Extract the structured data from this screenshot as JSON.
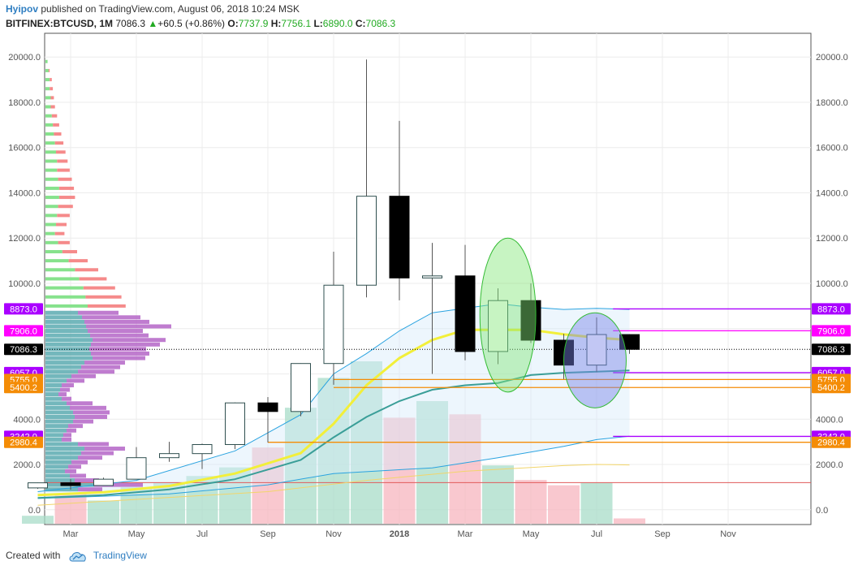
{
  "header": {
    "author": "Hyipov",
    "published_text": "published on TradingView.com, August 06, 2018 10:24 MSK",
    "symbol": "BITFINEX:BTCUSD, 1M",
    "last": "7086.3",
    "change_arrow": "▲",
    "change": "+60.5 (+0.86%)",
    "o_label": "O:",
    "o": "7737.9",
    "h_label": "H:",
    "h": "7756.1",
    "l_label": "L:",
    "l": "6890.0",
    "c_label": "C:",
    "c": "7086.3"
  },
  "footer": {
    "created_with": "Created with",
    "brand": "TradingView",
    "logo_icon": "tradingview-cloud-icon"
  },
  "colors": {
    "up_fill": "#ffffff",
    "down_fill": "#000000",
    "wick": "#555555",
    "vol_up": "#a8dcc8",
    "vol_down": "#f7b6bf",
    "ma_yellow": "#f2ef3a",
    "ma_teal": "#3a9e98",
    "band": "#2aa3e0",
    "profile_green": "#86e28c",
    "profile_red": "#f58a8a",
    "profile_teal": "#5aaab0",
    "profile_purple": "#b465c7",
    "green_ellipse": "#7ae37a",
    "blue_ellipse": "#8c96e8"
  },
  "chart_data": {
    "type": "candlestick",
    "x_labels": [
      "Mar",
      "May",
      "Jul",
      "Sep",
      "Nov",
      "2018",
      "Mar",
      "May",
      "Jul",
      "Sep",
      "Nov"
    ],
    "y_ticks": [
      "20000.0",
      "18000.0",
      "16000.0",
      "14000.0",
      "12000.0",
      "10000.0",
      "8000.0",
      "6000.0",
      "4000.0",
      "2000.0",
      "0.0"
    ],
    "candles": [
      {
        "m": "2017-02",
        "o": 965,
        "h": 1200,
        "l": 920,
        "c": 1190
      },
      {
        "m": "2017-03",
        "o": 1190,
        "h": 1350,
        "l": 890,
        "c": 1070
      },
      {
        "m": "2017-04",
        "o": 1070,
        "h": 1420,
        "l": 1060,
        "c": 1350
      },
      {
        "m": "2017-05",
        "o": 1350,
        "h": 2770,
        "l": 1350,
        "c": 2300
      },
      {
        "m": "2017-06",
        "o": 2300,
        "h": 3000,
        "l": 2120,
        "c": 2480
      },
      {
        "m": "2017-07",
        "o": 2480,
        "h": 2920,
        "l": 1800,
        "c": 2880
      },
      {
        "m": "2017-08",
        "o": 2880,
        "h": 4740,
        "l": 2680,
        "c": 4720
      },
      {
        "m": "2017-09",
        "o": 4720,
        "h": 4980,
        "l": 2970,
        "c": 4340
      },
      {
        "m": "2017-10",
        "o": 4340,
        "h": 6470,
        "l": 4130,
        "c": 6460
      },
      {
        "m": "2017-11",
        "o": 6460,
        "h": 11400,
        "l": 5520,
        "c": 9920
      },
      {
        "m": "2017-12",
        "o": 9920,
        "h": 19890,
        "l": 9380,
        "c": 13850
      },
      {
        "m": "2018-01",
        "o": 13850,
        "h": 17180,
        "l": 9250,
        "c": 10240
      },
      {
        "m": "2018-02",
        "o": 10240,
        "h": 11790,
        "l": 6000,
        "c": 10330
      },
      {
        "m": "2018-03",
        "o": 10330,
        "h": 11700,
        "l": 6600,
        "c": 6990
      },
      {
        "m": "2018-04",
        "o": 6990,
        "h": 9780,
        "l": 6430,
        "c": 9240
      },
      {
        "m": "2018-05",
        "o": 9240,
        "h": 10000,
        "l": 7370,
        "c": 7490
      },
      {
        "m": "2018-06",
        "o": 7490,
        "h": 7770,
        "l": 5770,
        "c": 6390
      },
      {
        "m": "2018-07",
        "o": 6390,
        "h": 8500,
        "l": 6080,
        "c": 7740
      },
      {
        "m": "2018-08",
        "o": 7737.9,
        "h": 7756.1,
        "l": 6890.0,
        "c": 7086.3
      }
    ],
    "volume_relative": [
      0.12,
      0.45,
      0.35,
      0.55,
      0.62,
      0.72,
      0.85,
      1.15,
      1.75,
      2.2,
      2.45,
      1.6,
      1.85,
      1.65,
      0.88,
      0.66,
      0.58,
      0.62,
      0.08
    ],
    "volume_bull": [
      true,
      false,
      true,
      true,
      true,
      true,
      true,
      false,
      true,
      true,
      true,
      false,
      true,
      false,
      true,
      false,
      false,
      true,
      false
    ],
    "ma_yellow": [
      {
        "i": 0,
        "v": 650
      },
      {
        "i": 2,
        "v": 770
      },
      {
        "i": 4,
        "v": 1050
      },
      {
        "i": 6,
        "v": 1600
      },
      {
        "i": 8,
        "v": 2500
      },
      {
        "i": 9,
        "v": 3800
      },
      {
        "i": 10,
        "v": 5500
      },
      {
        "i": 11,
        "v": 6700
      },
      {
        "i": 12,
        "v": 7500
      },
      {
        "i": 13,
        "v": 7950
      },
      {
        "i": 14,
        "v": 7950
      },
      {
        "i": 15,
        "v": 7950
      },
      {
        "i": 16,
        "v": 7750
      },
      {
        "i": 17,
        "v": 7600
      },
      {
        "i": 18,
        "v": 7500
      }
    ],
    "ma_teal": [
      {
        "i": 0,
        "v": 520
      },
      {
        "i": 2,
        "v": 650
      },
      {
        "i": 4,
        "v": 900
      },
      {
        "i": 6,
        "v": 1350
      },
      {
        "i": 8,
        "v": 2200
      },
      {
        "i": 9,
        "v": 3200
      },
      {
        "i": 10,
        "v": 4100
      },
      {
        "i": 11,
        "v": 4800
      },
      {
        "i": 12,
        "v": 5300
      },
      {
        "i": 13,
        "v": 5500
      },
      {
        "i": 14,
        "v": 5600
      },
      {
        "i": 15,
        "v": 5950
      },
      {
        "i": 16,
        "v": 6050
      },
      {
        "i": 17,
        "v": 6100
      },
      {
        "i": 18,
        "v": 6150
      }
    ],
    "band_upper": [
      {
        "i": 0,
        "v": 800
      },
      {
        "i": 3,
        "v": 1300
      },
      {
        "i": 6,
        "v": 2600
      },
      {
        "i": 8,
        "v": 4200
      },
      {
        "i": 9,
        "v": 6000
      },
      {
        "i": 10,
        "v": 6900
      },
      {
        "i": 11,
        "v": 7900
      },
      {
        "i": 12,
        "v": 8700
      },
      {
        "i": 14,
        "v": 9100
      },
      {
        "i": 15,
        "v": 8950
      },
      {
        "i": 16,
        "v": 8850
      },
      {
        "i": 17,
        "v": 8900
      },
      {
        "i": 18,
        "v": 8850
      }
    ],
    "band_lower": [
      {
        "i": 0,
        "v": 500
      },
      {
        "i": 4,
        "v": 700
      },
      {
        "i": 7,
        "v": 1100
      },
      {
        "i": 9,
        "v": 1600
      },
      {
        "i": 12,
        "v": 1850
      },
      {
        "i": 14,
        "v": 2300
      },
      {
        "i": 16,
        "v": 2800
      },
      {
        "i": 17,
        "v": 3100
      },
      {
        "i": 18,
        "v": 3250
      }
    ],
    "slow_ma": [
      {
        "i": 0,
        "v": 200
      },
      {
        "i": 7,
        "v": 800
      },
      {
        "i": 10,
        "v": 1300
      },
      {
        "i": 13,
        "v": 1700
      },
      {
        "i": 16,
        "v": 1950
      },
      {
        "i": 17,
        "v": 2000
      },
      {
        "i": 18,
        "v": 1980
      }
    ],
    "volume_profile": [
      {
        "p": 19800,
        "g": 2,
        "r": 0
      },
      {
        "p": 19400,
        "g": 3,
        "r": 1
      },
      {
        "p": 19000,
        "g": 4,
        "r": 2
      },
      {
        "p": 18600,
        "g": 4,
        "r": 3
      },
      {
        "p": 18200,
        "g": 5,
        "r": 3
      },
      {
        "p": 17800,
        "g": 5,
        "r": 4
      },
      {
        "p": 17400,
        "g": 6,
        "r": 5
      },
      {
        "p": 17000,
        "g": 7,
        "r": 6
      },
      {
        "p": 16600,
        "g": 8,
        "r": 7
      },
      {
        "p": 16200,
        "g": 9,
        "r": 8
      },
      {
        "p": 15800,
        "g": 10,
        "r": 9
      },
      {
        "p": 15400,
        "g": 11,
        "r": 10
      },
      {
        "p": 15000,
        "g": 11,
        "r": 12
      },
      {
        "p": 14600,
        "g": 12,
        "r": 13
      },
      {
        "p": 14200,
        "g": 13,
        "r": 14
      },
      {
        "p": 13800,
        "g": 13,
        "r": 15
      },
      {
        "p": 13400,
        "g": 12,
        "r": 14
      },
      {
        "p": 13000,
        "g": 11,
        "r": 12
      },
      {
        "p": 12600,
        "g": 10,
        "r": 10
      },
      {
        "p": 12200,
        "g": 9,
        "r": 9
      },
      {
        "p": 11800,
        "g": 12,
        "r": 11
      },
      {
        "p": 11400,
        "g": 16,
        "r": 14
      },
      {
        "p": 11000,
        "g": 22,
        "r": 18
      },
      {
        "p": 10600,
        "g": 28,
        "r": 22
      },
      {
        "p": 10200,
        "g": 32,
        "r": 26
      },
      {
        "p": 9800,
        "g": 36,
        "r": 30
      },
      {
        "p": 9400,
        "g": 38,
        "r": 34
      },
      {
        "p": 9000,
        "g": 40,
        "r": 36
      }
    ],
    "volume_profile_value_area": [
      {
        "p": 8700,
        "t": 40,
        "u": 50
      },
      {
        "p": 8500,
        "t": 45,
        "u": 72
      },
      {
        "p": 8300,
        "t": 48,
        "u": 80
      },
      {
        "p": 8100,
        "t": 50,
        "u": 105
      },
      {
        "p": 7900,
        "t": 52,
        "u": 68
      },
      {
        "p": 7700,
        "t": 55,
        "u": 72
      },
      {
        "p": 7500,
        "t": 58,
        "u": 90
      },
      {
        "p": 7300,
        "t": 56,
        "u": 85
      },
      {
        "p": 7100,
        "t": 54,
        "u": 70
      },
      {
        "p": 6900,
        "t": 56,
        "u": 72
      },
      {
        "p": 6700,
        "t": 58,
        "u": 65
      },
      {
        "p": 6500,
        "t": 48,
        "u": 50
      },
      {
        "p": 6300,
        "t": 44,
        "u": 48
      },
      {
        "p": 6100,
        "t": 40,
        "u": 45
      },
      {
        "p": 5900,
        "t": 32,
        "u": 30
      },
      {
        "p": 5700,
        "t": 26,
        "u": 22
      },
      {
        "p": 5500,
        "t": 20,
        "u": 15
      },
      {
        "p": 5300,
        "t": 18,
        "u": 12
      },
      {
        "p": 5100,
        "t": 16,
        "u": 10
      },
      {
        "p": 4900,
        "t": 20,
        "u": 12
      },
      {
        "p": 4700,
        "t": 26,
        "u": 32
      },
      {
        "p": 4500,
        "t": 30,
        "u": 45
      },
      {
        "p": 4300,
        "t": 34,
        "u": 45
      },
      {
        "p": 4100,
        "t": 36,
        "u": 40
      },
      {
        "p": 3900,
        "t": 34,
        "u": 25
      },
      {
        "p": 3700,
        "t": 28,
        "u": 18
      },
      {
        "p": 3500,
        "t": 26,
        "u": 12
      },
      {
        "p": 3300,
        "t": 22,
        "u": 10
      },
      {
        "p": 3100,
        "t": 20,
        "u": 12
      },
      {
        "p": 2900,
        "t": 40,
        "u": 38
      },
      {
        "p": 2700,
        "t": 48,
        "u": 50
      },
      {
        "p": 2500,
        "t": 44,
        "u": 40
      },
      {
        "p": 2300,
        "t": 40,
        "u": 30
      },
      {
        "p": 2100,
        "t": 32,
        "u": 20
      },
      {
        "p": 1900,
        "t": 28,
        "u": 16
      },
      {
        "p": 1700,
        "t": 24,
        "u": 14
      },
      {
        "p": 1500,
        "t": 30,
        "u": 20
      },
      {
        "p": 1300,
        "t": 36,
        "u": 30
      },
      {
        "p": 1100,
        "t": 60,
        "u": 60
      },
      {
        "p": 900,
        "t": 40,
        "u": 30
      }
    ],
    "levels": [
      {
        "value": 8873.0,
        "label": "8873.0",
        "color": "#aa00ff",
        "x_from": 17.5
      },
      {
        "value": 7906.0,
        "label": "7906.0",
        "color": "#ff00ff",
        "x_from": 17.5
      },
      {
        "value": 7086.3,
        "label": "7086.3",
        "color": "#000000",
        "x_from": 0,
        "dotted": true
      },
      {
        "value": 6057.0,
        "label": "6057.0",
        "color": "#aa00ff",
        "x_from": 17.5
      },
      {
        "value": 5755.0,
        "label": "5755.0",
        "color": "#f48c06",
        "x_from": 9
      },
      {
        "value": 5400.2,
        "label": "5400.2",
        "color": "#f48c06",
        "x_from": 9
      },
      {
        "value": 3242.0,
        "label": "3242.0",
        "color": "#aa00ff",
        "x_from": 17.5
      },
      {
        "value": 2980.4,
        "label": "2980.4",
        "color": "#f48c06",
        "x_from": 7
      }
    ],
    "ellipses": [
      {
        "cx": 14.3,
        "cy": 8600,
        "rx": 0.85,
        "ry": 3400,
        "color": "green"
      },
      {
        "cx": 16.95,
        "cy": 6600,
        "rx": 0.95,
        "ry": 2100,
        "color": "blue"
      }
    ],
    "red_line": 1200,
    "ylim": [
      -600,
      20600
    ]
  }
}
